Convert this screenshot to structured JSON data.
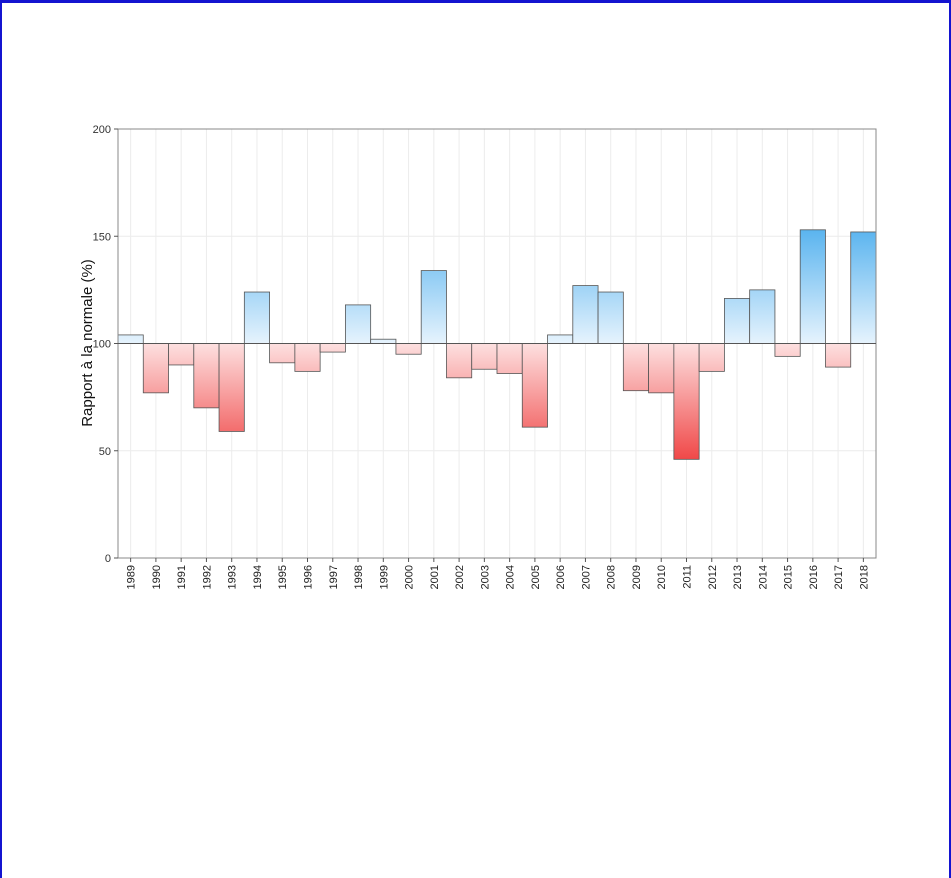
{
  "chart_data": {
    "type": "bar",
    "baseline": 100,
    "ylabel": "Rapport à la normale (%)",
    "xlabel": "",
    "ylim": [
      0,
      200
    ],
    "yticks": [
      0,
      50,
      100,
      150,
      200
    ],
    "grid": true,
    "categories": [
      "1989",
      "1990",
      "1991",
      "1992",
      "1993",
      "1994",
      "1995",
      "1996",
      "1997",
      "1998",
      "1999",
      "2000",
      "2001",
      "2002",
      "2003",
      "2004",
      "2005",
      "2006",
      "2007",
      "2008",
      "2009",
      "2010",
      "2011",
      "2012",
      "2013",
      "2014",
      "2015",
      "2016",
      "2017",
      "2018"
    ],
    "values": [
      104,
      77,
      90,
      70,
      59,
      124,
      91,
      87,
      96,
      118,
      102,
      95,
      134,
      84,
      88,
      86,
      61,
      104,
      127,
      124,
      78,
      77,
      46,
      87,
      121,
      125,
      94,
      153,
      89,
      152
    ],
    "colors": {
      "above_light": "#e6f3fd",
      "above_dark": "#5ab4ef",
      "below_light": "#fde0e0",
      "below_dark": "#f04848",
      "bar_stroke": "#555555",
      "baseline": "#555555",
      "grid": "#ececec",
      "frame": "#1414d0"
    }
  }
}
